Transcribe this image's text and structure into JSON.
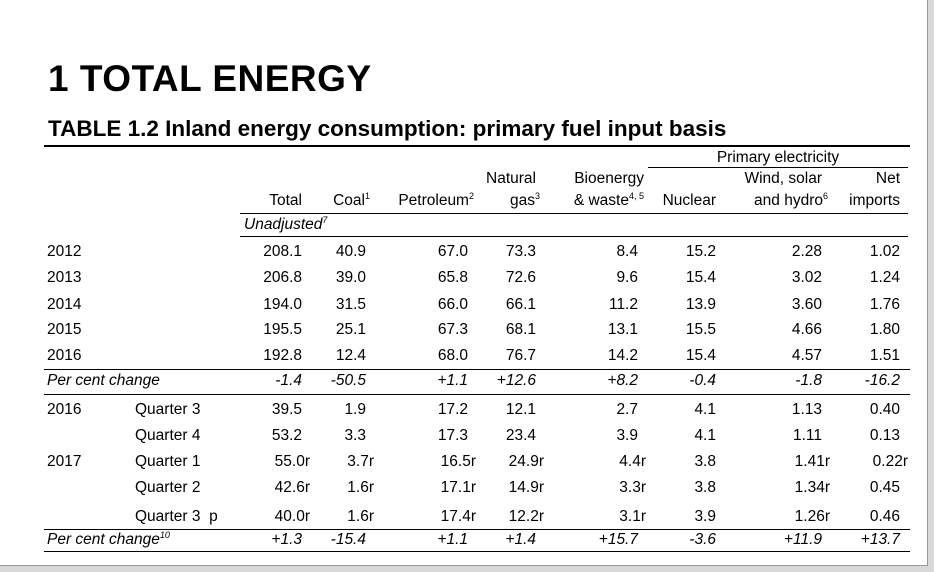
{
  "main_title": "1 TOTAL ENERGY",
  "table_title": "TABLE 1.2 Inland energy consumption: primary fuel input basis",
  "header": {
    "primary_electricity": "Primary electricity",
    "total": "Total",
    "coal": "Coal",
    "coal_sup": "1",
    "petroleum": "Petroleum",
    "petroleum_sup": "2",
    "natural_gas_1": "Natural",
    "natural_gas_2": "gas",
    "natural_gas_sup": "3",
    "bio_1": "Bioenergy",
    "bio_sup": "4, 5",
    "bio_2": "& waste",
    "nuclear": "Nuclear",
    "wind_1": "Wind, solar",
    "wind_2": "and hydro",
    "wind_sup": "6",
    "net_1": "Net",
    "net_2": "imports",
    "unadjusted": "Unadjusted",
    "unadjusted_sup": "7"
  },
  "annual_rows": [
    {
      "year": "2012",
      "values": [
        "208.1",
        "40.9",
        "67.0",
        "73.3",
        "8.4",
        "15.2",
        "2.28",
        "1.02"
      ]
    },
    {
      "year": "2013",
      "values": [
        "206.8",
        "39.0",
        "65.8",
        "72.6",
        "9.6",
        "15.4",
        "3.02",
        "1.24"
      ]
    },
    {
      "year": "2014",
      "values": [
        "194.0",
        "31.5",
        "66.0",
        "66.1",
        "11.2",
        "13.9",
        "3.60",
        "1.76"
      ]
    },
    {
      "year": "2015",
      "values": [
        "195.5",
        "25.1",
        "67.3",
        "68.1",
        "13.1",
        "15.5",
        "4.66",
        "1.80"
      ]
    },
    {
      "year": "2016",
      "values": [
        "192.8",
        "12.4",
        "68.0",
        "76.7",
        "14.2",
        "15.4",
        "4.57",
        "1.51"
      ]
    }
  ],
  "annual_change": {
    "label": "Per cent change",
    "values": [
      "-1.4",
      "-50.5",
      "+1.1",
      "+12.6",
      "+8.2",
      "-0.4",
      "-1.8",
      "-16.2"
    ]
  },
  "quarter_rows": [
    {
      "year": "2016",
      "quarter": "Quarter 3",
      "values": [
        "39.5",
        "1.9",
        "17.2",
        "12.1",
        "2.7",
        "4.1",
        "1.13",
        "0.40"
      ]
    },
    {
      "year": "",
      "quarter": "Quarter 4",
      "values": [
        "53.2",
        "3.3",
        "17.3",
        "23.4",
        "3.9",
        "4.1",
        "1.11",
        "0.13"
      ]
    },
    {
      "year": "2017",
      "quarter": "Quarter 1",
      "values": [
        "55.0r",
        "3.7r",
        "16.5r",
        "24.9r",
        "4.4r",
        "3.8",
        "1.41r",
        "0.22r"
      ]
    },
    {
      "year": "",
      "quarter": "Quarter 2",
      "values": [
        "42.6r",
        "1.6r",
        "17.1r",
        "14.9r",
        "3.3r",
        "3.8",
        "1.34r",
        "0.45"
      ]
    },
    {
      "year": "",
      "quarter": "Quarter 3  p",
      "values": [
        "40.0r",
        "1.6r",
        "17.4r",
        "12.2r",
        "3.1r",
        "3.9",
        "1.26r",
        "0.46"
      ]
    }
  ],
  "quarter_change": {
    "label": "Per cent change",
    "label_sup": "10",
    "values": [
      "+1.3",
      "-15.4",
      "+1.1",
      "+1.4",
      "+15.7",
      "-3.6",
      "+11.9",
      "+13.7"
    ]
  }
}
